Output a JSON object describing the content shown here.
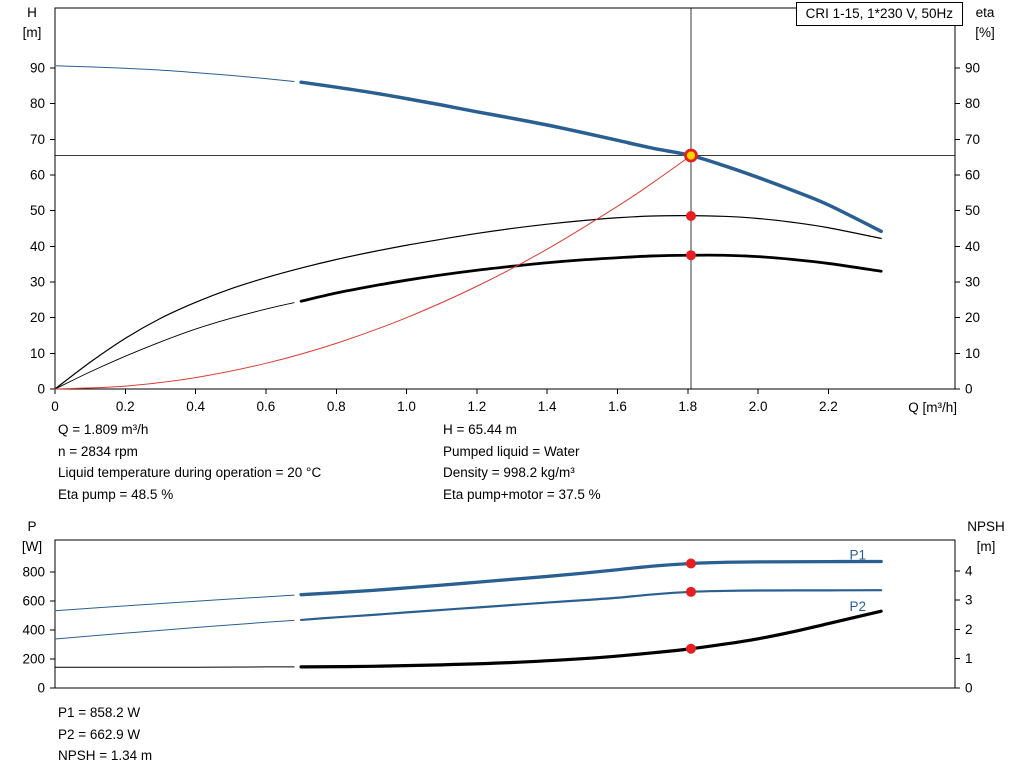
{
  "title_box": {
    "text": "CRI 1-15, 1*230 V, 50Hz"
  },
  "colors": {
    "curve_blue": "#2a5f92",
    "curve_black": "#000000",
    "curve_red": "#dc3b30",
    "dot_red": "#e51f1f",
    "op_fill": "#ffd400",
    "frame": "#000000",
    "crosshair": "#3a3a3a",
    "text": "#000000"
  },
  "chart_data": [
    {
      "id": "qh-eta-chart",
      "type": "line",
      "x": {
        "label": "Q [m³/h]",
        "min": 0,
        "max": 2.56,
        "ticks": [
          [
            0,
            "0"
          ],
          [
            0.2,
            "0.2"
          ],
          [
            0.4,
            "0.4"
          ],
          [
            0.6,
            "0.6"
          ],
          [
            0.8,
            "0.8"
          ],
          [
            1.0,
            "1.0"
          ],
          [
            1.2,
            "1.2"
          ],
          [
            1.4,
            "1.4"
          ],
          [
            1.6,
            "1.6"
          ],
          [
            1.8,
            "1.8"
          ],
          [
            2.0,
            "2.0"
          ],
          [
            2.2,
            "2.2"
          ]
        ]
      },
      "y_left": {
        "label": "H",
        "unit": "[m]",
        "min": 0,
        "max": 106.8,
        "ticks": [
          [
            0,
            "0"
          ],
          [
            10,
            "10"
          ],
          [
            20,
            "20"
          ],
          [
            30,
            "30"
          ],
          [
            40,
            "40"
          ],
          [
            50,
            "50"
          ],
          [
            60,
            "60"
          ],
          [
            70,
            "70"
          ],
          [
            80,
            "80"
          ],
          [
            90,
            "90"
          ]
        ]
      },
      "y_right": {
        "label": "eta",
        "unit": "[%]",
        "min": 0,
        "max": 106.8,
        "ticks": [
          [
            0,
            "0"
          ],
          [
            10,
            "10"
          ],
          [
            20,
            "20"
          ],
          [
            30,
            "30"
          ],
          [
            40,
            "40"
          ],
          [
            50,
            "50"
          ],
          [
            60,
            "60"
          ],
          [
            70,
            "70"
          ],
          [
            80,
            "80"
          ],
          [
            90,
            "90"
          ]
        ]
      },
      "crosshair": {
        "q": 1.809,
        "value": 65.44,
        "axis": "left"
      },
      "series": [
        {
          "name": "qh-curve-low-flow",
          "color": "#2a5f92",
          "width": 1,
          "axis": "left",
          "points": [
            [
              0,
              90.6
            ],
            [
              0.1,
              90.3
            ],
            [
              0.2,
              89.9
            ],
            [
              0.3,
              89.4
            ],
            [
              0.4,
              88.7
            ],
            [
              0.5,
              87.9
            ],
            [
              0.6,
              87.0
            ],
            [
              0.68,
              86.2
            ]
          ]
        },
        {
          "name": "qh-curve",
          "color": "#2a5f92",
          "width": 3.5,
          "axis": "left",
          "points": [
            [
              0.7,
              86.0
            ],
            [
              0.8,
              84.6
            ],
            [
              0.9,
              83.1
            ],
            [
              1.0,
              81.4
            ],
            [
              1.1,
              79.6
            ],
            [
              1.2,
              77.7
            ],
            [
              1.3,
              75.9
            ],
            [
              1.4,
              74.0
            ],
            [
              1.5,
              71.9
            ],
            [
              1.6,
              69.7
            ],
            [
              1.7,
              67.5
            ],
            [
              1.809,
              65.44
            ],
            [
              1.9,
              62.7
            ],
            [
              2.0,
              59.3
            ],
            [
              2.1,
              55.6
            ],
            [
              2.2,
              51.6
            ],
            [
              2.35,
              44.2
            ]
          ]
        },
        {
          "name": "eta-pump-curve",
          "color": "#000000",
          "width": 1.2,
          "axis": "right",
          "points": [
            [
              0,
              0
            ],
            [
              0.1,
              7.5
            ],
            [
              0.2,
              14.2
            ],
            [
              0.3,
              19.8
            ],
            [
              0.4,
              24.3
            ],
            [
              0.5,
              28.1
            ],
            [
              0.6,
              31.2
            ],
            [
              0.7,
              33.9
            ],
            [
              0.8,
              36.3
            ],
            [
              0.9,
              38.4
            ],
            [
              1.0,
              40.3
            ],
            [
              1.1,
              42.0
            ],
            [
              1.2,
              43.6
            ],
            [
              1.3,
              45.0
            ],
            [
              1.4,
              46.2
            ],
            [
              1.5,
              47.2
            ],
            [
              1.6,
              48.0
            ],
            [
              1.7,
              48.5
            ],
            [
              1.8,
              48.6
            ],
            [
              1.9,
              48.4
            ],
            [
              2.0,
              47.8
            ],
            [
              2.1,
              46.7
            ],
            [
              2.2,
              45.2
            ],
            [
              2.35,
              42.2
            ]
          ]
        },
        {
          "name": "eta-pump-motor-low-flow",
          "color": "#000000",
          "width": 0.9,
          "axis": "right",
          "points": [
            [
              0,
              0
            ],
            [
              0.1,
              4.8
            ],
            [
              0.2,
              9.2
            ],
            [
              0.3,
              13.2
            ],
            [
              0.4,
              16.8
            ],
            [
              0.5,
              19.8
            ],
            [
              0.6,
              22.4
            ],
            [
              0.68,
              24.2
            ]
          ]
        },
        {
          "name": "eta-pump-motor-curve",
          "color": "#000000",
          "width": 2.8,
          "axis": "right",
          "points": [
            [
              0.7,
              24.6
            ],
            [
              0.8,
              26.9
            ],
            [
              0.9,
              28.8
            ],
            [
              1.0,
              30.5
            ],
            [
              1.1,
              32.0
            ],
            [
              1.2,
              33.3
            ],
            [
              1.3,
              34.4
            ],
            [
              1.4,
              35.4
            ],
            [
              1.5,
              36.2
            ],
            [
              1.6,
              36.8
            ],
            [
              1.7,
              37.3
            ],
            [
              1.8,
              37.5
            ],
            [
              1.9,
              37.5
            ],
            [
              2.0,
              37.1
            ],
            [
              2.1,
              36.3
            ],
            [
              2.2,
              35.2
            ],
            [
              2.35,
              33.0
            ]
          ]
        },
        {
          "name": "system-curve",
          "color": "#dc3b30",
          "width": 1,
          "axis": "left",
          "points": [
            [
              0,
              0
            ],
            [
              0.2,
              0.8
            ],
            [
              0.4,
              3.2
            ],
            [
              0.6,
              7.2
            ],
            [
              0.8,
              12.8
            ],
            [
              1.0,
              20.0
            ],
            [
              1.2,
              28.8
            ],
            [
              1.4,
              39.2
            ],
            [
              1.6,
              51.2
            ],
            [
              1.7,
              57.8
            ],
            [
              1.809,
              65.44
            ]
          ]
        }
      ],
      "markers": [
        {
          "name": "operating-point",
          "q": 1.809,
          "value": 65.44,
          "axis": "left",
          "style": "op"
        },
        {
          "name": "eta-pump-point",
          "q": 1.809,
          "value": 48.5,
          "axis": "right",
          "style": "dot"
        },
        {
          "name": "eta-pump-motor-point",
          "q": 1.809,
          "value": 37.5,
          "axis": "right",
          "style": "dot"
        }
      ],
      "annotations": []
    },
    {
      "id": "power-npsh-chart",
      "type": "line",
      "x": {
        "label": "",
        "min": 0,
        "max": 2.56,
        "ticks": []
      },
      "y_left": {
        "label": "P",
        "unit": "[W]",
        "min": 0,
        "max": 1020,
        "ticks": [
          [
            0,
            "0"
          ],
          [
            200,
            "200"
          ],
          [
            400,
            "400"
          ],
          [
            600,
            "600"
          ],
          [
            800,
            "800"
          ]
        ]
      },
      "y_right": {
        "label": "NPSH",
        "unit": "[m]",
        "min": 0,
        "max": 5.05,
        "ticks": [
          [
            0,
            "0"
          ],
          [
            1,
            "1"
          ],
          [
            2,
            "2"
          ],
          [
            3,
            "3"
          ],
          [
            4,
            "4"
          ]
        ]
      },
      "series": [
        {
          "name": "p1-curve-low-flow",
          "color": "#2a5f92",
          "width": 1,
          "axis": "left",
          "points": [
            [
              0,
              532
            ],
            [
              0.2,
              566
            ],
            [
              0.4,
              598
            ],
            [
              0.6,
              628
            ],
            [
              0.68,
              640
            ]
          ]
        },
        {
          "name": "p1-curve",
          "color": "#2a5f92",
          "width": 3.3,
          "axis": "left",
          "points": [
            [
              0.7,
              643
            ],
            [
              0.8,
              657
            ],
            [
              0.9,
              672
            ],
            [
              1.0,
              690
            ],
            [
              1.1,
              709
            ],
            [
              1.2,
              729
            ],
            [
              1.3,
              749
            ],
            [
              1.4,
              769
            ],
            [
              1.5,
              791
            ],
            [
              1.6,
              815
            ],
            [
              1.7,
              840
            ],
            [
              1.809,
              858.2
            ],
            [
              1.9,
              866
            ],
            [
              2.0,
              869
            ],
            [
              2.2,
              871
            ],
            [
              2.35,
              872
            ]
          ]
        },
        {
          "name": "p2-curve-low-flow",
          "color": "#2a5f92",
          "width": 1,
          "axis": "left",
          "points": [
            [
              0,
              338
            ],
            [
              0.2,
              378
            ],
            [
              0.4,
              417
            ],
            [
              0.6,
              453
            ],
            [
              0.68,
              466
            ]
          ]
        },
        {
          "name": "p2-curve",
          "color": "#2a5f92",
          "width": 2.2,
          "axis": "left",
          "points": [
            [
              0.7,
              469
            ],
            [
              0.8,
              487
            ],
            [
              0.9,
              503
            ],
            [
              1.0,
              521
            ],
            [
              1.1,
              538
            ],
            [
              1.2,
              555
            ],
            [
              1.3,
              572
            ],
            [
              1.4,
              589
            ],
            [
              1.5,
              605
            ],
            [
              1.6,
              622
            ],
            [
              1.7,
              645
            ],
            [
              1.809,
              662.9
            ],
            [
              1.9,
              669
            ],
            [
              2.0,
              672
            ],
            [
              2.2,
              673
            ],
            [
              2.35,
              674
            ]
          ]
        },
        {
          "name": "npsh-curve-low-flow",
          "color": "#000000",
          "width": 1,
          "axis": "right",
          "points": [
            [
              0,
              0.71
            ],
            [
              0.2,
              0.71
            ],
            [
              0.4,
              0.71
            ],
            [
              0.6,
              0.72
            ],
            [
              0.68,
              0.72
            ]
          ]
        },
        {
          "name": "npsh-curve",
          "color": "#000000",
          "width": 3.2,
          "axis": "right",
          "points": [
            [
              0.7,
              0.72
            ],
            [
              0.9,
              0.74
            ],
            [
              1.1,
              0.79
            ],
            [
              1.3,
              0.87
            ],
            [
              1.5,
              1.0
            ],
            [
              1.6,
              1.09
            ],
            [
              1.7,
              1.2
            ],
            [
              1.809,
              1.34
            ],
            [
              1.9,
              1.49
            ],
            [
              2.0,
              1.68
            ],
            [
              2.1,
              1.92
            ],
            [
              2.2,
              2.2
            ],
            [
              2.35,
              2.62
            ]
          ]
        }
      ],
      "markers": [
        {
          "name": "p1-point",
          "q": 1.809,
          "value": 858.2,
          "axis": "left",
          "style": "dot"
        },
        {
          "name": "p2-point",
          "q": 1.809,
          "value": 662.9,
          "axis": "left",
          "style": "dot"
        },
        {
          "name": "npsh-point",
          "q": 1.809,
          "value": 1.34,
          "axis": "right",
          "style": "dot"
        }
      ],
      "annotations": [
        {
          "name": "p1-label",
          "text": "P1",
          "q": 2.26,
          "value": 915,
          "axis": "left",
          "color": "#2a5f92"
        },
        {
          "name": "p2-label",
          "text": "P2",
          "q": 2.26,
          "value": 560,
          "axis": "left",
          "color": "#2a5f92"
        }
      ]
    }
  ],
  "info_top": {
    "left": [
      "Q = 1.809 m³/h",
      "n = 2834 rpm",
      "Liquid temperature during operation = 20 °C",
      "Eta pump = 48.5 %"
    ],
    "right": [
      "H = 65.44 m",
      "Pumped liquid = Water",
      "Density = 998.2 kg/m³",
      "Eta pump+motor = 37.5 %"
    ]
  },
  "info_bottom": [
    "P1 = 858.2 W",
    "P2 = 662.9 W",
    "NPSH = 1.34 m"
  ]
}
